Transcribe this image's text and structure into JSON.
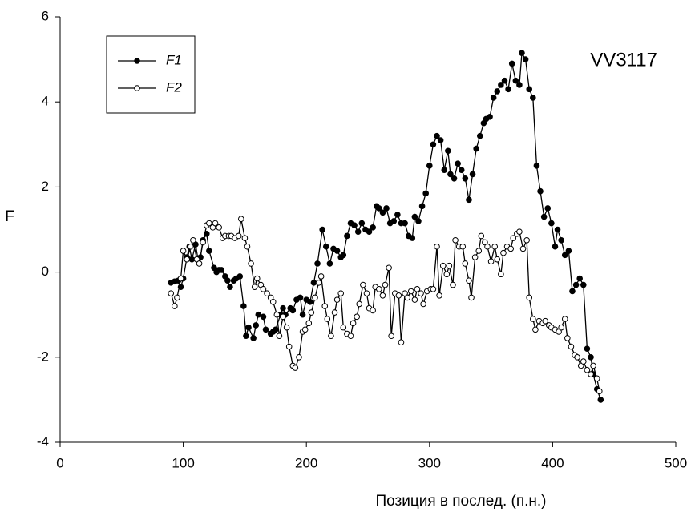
{
  "chart_data": {
    "type": "line",
    "x_label": "Позиция в послед. (п.н.)",
    "y_label": "F",
    "annotation": "VV3117",
    "legend": "upper left",
    "xlim": [
      0,
      500
    ],
    "xticks": [
      0,
      100,
      200,
      300,
      400,
      500
    ],
    "ylim": [
      -4,
      6
    ],
    "yticks": [
      -4,
      -2,
      0,
      2,
      4,
      6
    ],
    "series": [
      {
        "name": "F1",
        "color": "#000000",
        "marker_fill": "#000000",
        "x": [
          90,
          93,
          96,
          98,
          100,
          103,
          105,
          107,
          110,
          112,
          114,
          116,
          119,
          121,
          125,
          127,
          129,
          131,
          134,
          136,
          138,
          141,
          143,
          146,
          149,
          151,
          153,
          157,
          159,
          161,
          165,
          167,
          171,
          173,
          175,
          179,
          181,
          183,
          187,
          189,
          192,
          195,
          197,
          200,
          203,
          206,
          209,
          213,
          216,
          219,
          222,
          225,
          228,
          230,
          233,
          236,
          239,
          242,
          245,
          248,
          251,
          254,
          257,
          259,
          262,
          265,
          268,
          271,
          274,
          277,
          280,
          283,
          286,
          288,
          291,
          294,
          297,
          300,
          303,
          306,
          309,
          312,
          315,
          317,
          320,
          323,
          326,
          329,
          332,
          335,
          338,
          341,
          344,
          346,
          349,
          352,
          355,
          358,
          361,
          364,
          367,
          370,
          373,
          375,
          378,
          381,
          384,
          387,
          390,
          393,
          396,
          399,
          402,
          404,
          407,
          410,
          413,
          416,
          419,
          422,
          425,
          428,
          431,
          433,
          436,
          439
        ],
        "values": [
          -0.25,
          -0.22,
          -0.2,
          -0.35,
          -0.15,
          0.35,
          0.6,
          0.3,
          0.65,
          0.3,
          0.35,
          0.75,
          0.9,
          0.5,
          0.1,
          0.0,
          0.05,
          0.05,
          -0.1,
          -0.2,
          -0.35,
          -0.2,
          -0.15,
          -0.1,
          -0.8,
          -1.5,
          -1.3,
          -1.55,
          -1.25,
          -1.0,
          -1.05,
          -1.35,
          -1.45,
          -1.4,
          -1.35,
          -1.0,
          -0.85,
          -1.0,
          -0.85,
          -0.9,
          -0.65,
          -0.6,
          -1.0,
          -0.65,
          -0.7,
          -0.25,
          0.2,
          1.0,
          0.6,
          0.2,
          0.55,
          0.5,
          0.35,
          0.4,
          0.85,
          1.15,
          1.1,
          0.95,
          1.15,
          1.0,
          0.95,
          1.05,
          1.55,
          1.5,
          1.4,
          1.5,
          1.15,
          1.2,
          1.35,
          1.15,
          1.15,
          0.85,
          0.8,
          1.3,
          1.2,
          1.55,
          1.85,
          2.5,
          3.0,
          3.2,
          3.1,
          2.4,
          2.85,
          2.3,
          2.2,
          2.55,
          2.4,
          2.2,
          1.7,
          2.3,
          2.9,
          3.2,
          3.5,
          3.6,
          3.65,
          4.1,
          4.25,
          4.4,
          4.5,
          4.3,
          4.9,
          4.5,
          4.4,
          5.15,
          5.0,
          4.3,
          4.1,
          2.5,
          1.9,
          1.3,
          1.5,
          1.15,
          0.6,
          1.0,
          0.75,
          0.4,
          0.5,
          -0.45,
          -0.3,
          -0.15,
          -0.3,
          -1.8,
          -2.0,
          -2.4,
          -2.75,
          -3.0
        ]
      },
      {
        "name": "F2",
        "color": "#000000",
        "marker_fill": "#ffffff",
        "x": [
          90,
          93,
          95,
          98,
          100,
          103,
          106,
          108,
          111,
          113,
          116,
          119,
          121,
          124,
          126,
          129,
          132,
          134,
          137,
          139,
          142,
          145,
          147,
          150,
          152,
          155,
          158,
          160,
          163,
          165,
          168,
          171,
          173,
          176,
          178,
          181,
          184,
          186,
          189,
          191,
          194,
          197,
          199,
          202,
          204,
          207,
          210,
          212,
          215,
          217,
          220,
          223,
          225,
          228,
          230,
          233,
          236,
          238,
          241,
          243,
          246,
          249,
          251,
          254,
          256,
          259,
          262,
          264,
          267,
          269,
          272,
          275,
          277,
          280,
          282,
          285,
          288,
          290,
          293,
          295,
          298,
          301,
          303,
          306,
          308,
          311,
          314,
          316,
          319,
          321,
          324,
          327,
          329,
          332,
          334,
          337,
          340,
          342,
          345,
          347,
          350,
          353,
          355,
          358,
          360,
          363,
          366,
          368,
          371,
          373,
          376,
          379,
          381,
          384,
          386,
          389,
          392,
          394,
          397,
          399,
          402,
          405,
          407,
          410,
          412,
          415,
          418,
          420,
          423,
          425,
          428,
          431,
          433,
          436,
          438
        ],
        "values": [
          -0.5,
          -0.8,
          -0.6,
          -0.15,
          0.5,
          0.3,
          0.6,
          0.75,
          0.3,
          0.2,
          0.7,
          1.1,
          1.15,
          1.05,
          1.15,
          1.05,
          0.8,
          0.85,
          0.85,
          0.85,
          0.8,
          0.85,
          1.25,
          0.8,
          0.6,
          0.2,
          -0.35,
          -0.15,
          -0.3,
          -0.4,
          -0.5,
          -0.6,
          -0.7,
          -1.0,
          -1.5,
          -1.05,
          -1.3,
          -1.75,
          -2.2,
          -2.25,
          -2.0,
          -1.4,
          -1.35,
          -1.2,
          -0.95,
          -0.6,
          -0.25,
          -0.1,
          -0.8,
          -1.1,
          -1.5,
          -0.95,
          -0.65,
          -0.5,
          -1.3,
          -1.45,
          -1.5,
          -1.2,
          -1.05,
          -0.75,
          -0.3,
          -0.5,
          -0.85,
          -0.9,
          -0.35,
          -0.4,
          -0.55,
          -0.3,
          0.1,
          -1.5,
          -0.5,
          -0.55,
          -1.65,
          -0.5,
          -0.6,
          -0.45,
          -0.65,
          -0.4,
          -0.5,
          -0.75,
          -0.45,
          -0.4,
          -0.4,
          0.6,
          -0.55,
          0.15,
          -0.05,
          0.15,
          -0.3,
          0.75,
          0.6,
          0.6,
          0.2,
          -0.2,
          -0.6,
          0.35,
          0.5,
          0.85,
          0.7,
          0.6,
          0.25,
          0.6,
          0.3,
          -0.05,
          0.45,
          0.6,
          0.55,
          0.8,
          0.9,
          0.95,
          0.55,
          0.75,
          -0.6,
          -1.1,
          -1.35,
          -1.15,
          -1.2,
          -1.15,
          -1.25,
          -1.3,
          -1.35,
          -1.4,
          -1.3,
          -1.1,
          -1.55,
          -1.75,
          -1.95,
          -2.0,
          -2.2,
          -2.1,
          -2.3,
          -2.4,
          -2.2,
          -2.5,
          -2.8
        ]
      }
    ]
  }
}
